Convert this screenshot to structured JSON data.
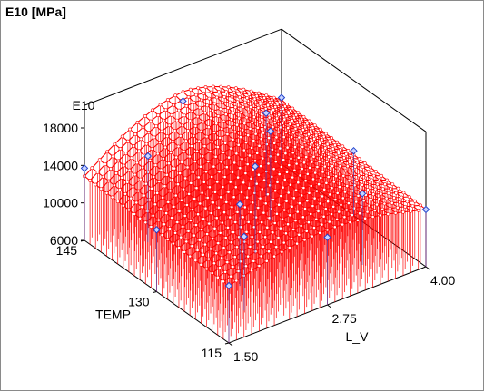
{
  "chart": {
    "title": "E10  [MPa]"
  },
  "chart_data": {
    "type": "surface3d",
    "title": "E10  [MPa]",
    "x_axis": {
      "label": "L_V",
      "range": [
        1.5,
        4.0
      ],
      "ticks": [
        "1.50",
        "2.75",
        "4.00"
      ]
    },
    "y_axis": {
      "label": "TEMP",
      "range": [
        115,
        145
      ],
      "ticks": [
        "115",
        "130",
        "145"
      ]
    },
    "z_axis": {
      "label": "E10",
      "range": [
        6000,
        18000
      ],
      "ticks": [
        "6000",
        "10000",
        "14000",
        "18000"
      ]
    },
    "surface_color": "#ff0000",
    "marker_color": "#2244cc",
    "points": [
      {
        "l_v": 1.5,
        "temp": 145,
        "e10": 13700
      },
      {
        "l_v": 1.5,
        "temp": 130,
        "e10": 12600
      },
      {
        "l_v": 1.5,
        "temp": 115,
        "e10": 12100
      },
      {
        "l_v": 2.0,
        "temp": 140,
        "e10": 15200
      },
      {
        "l_v": 2.0,
        "temp": 120,
        "e10": 13900
      },
      {
        "l_v": 2.75,
        "temp": 145,
        "e10": 16800
      },
      {
        "l_v": 2.75,
        "temp": 130,
        "e10": 15300
      },
      {
        "l_v": 2.75,
        "temp": 115,
        "e10": 13200
      },
      {
        "l_v": 3.5,
        "temp": 140,
        "e10": 14900
      },
      {
        "l_v": 3.5,
        "temp": 120,
        "e10": 13600
      },
      {
        "l_v": 4.0,
        "temp": 145,
        "e10": 13100
      },
      {
        "l_v": 4.0,
        "temp": 130,
        "e10": 12900
      },
      {
        "l_v": 4.0,
        "temp": 115,
        "e10": 12100
      },
      {
        "l_v": 2.25,
        "temp": 125,
        "e10": 14700
      },
      {
        "l_v": 3.25,
        "temp": 135,
        "e10": 15600
      }
    ]
  }
}
